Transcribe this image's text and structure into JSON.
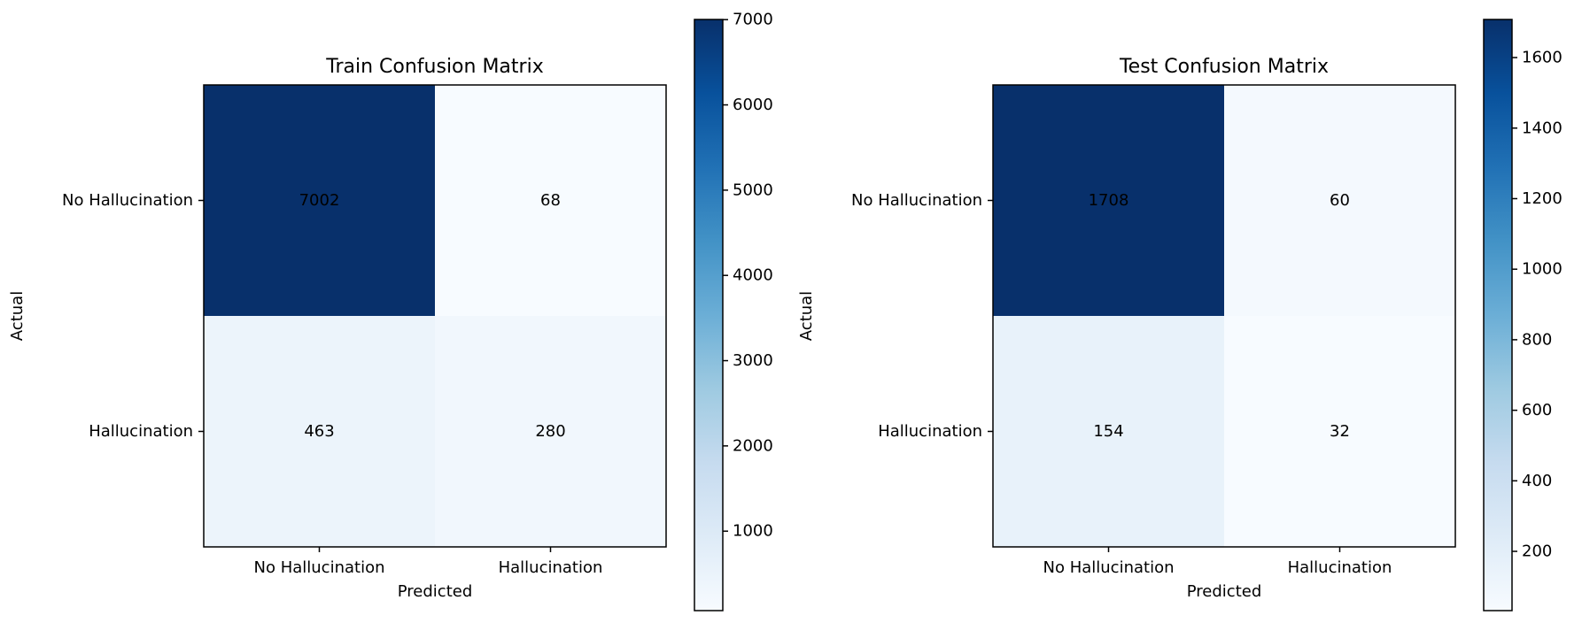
{
  "chart_data": [
    {
      "type": "heatmap",
      "title": "Train Confusion Matrix",
      "xlabel": "Predicted",
      "ylabel": "Actual",
      "x_categories": [
        "No Hallucination",
        "Hallucination"
      ],
      "y_categories": [
        "No Hallucination",
        "Hallucination"
      ],
      "matrix": [
        [
          7002,
          68
        ],
        [
          463,
          280
        ]
      ],
      "colormap": "Blues",
      "colorbar": {
        "min": 68,
        "max": 7002,
        "ticks": [
          1000,
          2000,
          3000,
          4000,
          5000,
          6000,
          7000
        ]
      }
    },
    {
      "type": "heatmap",
      "title": "Test Confusion Matrix",
      "xlabel": "Predicted",
      "ylabel": "Actual",
      "x_categories": [
        "No Hallucination",
        "Hallucination"
      ],
      "y_categories": [
        "No Hallucination",
        "Hallucination"
      ],
      "matrix": [
        [
          1708,
          60
        ],
        [
          154,
          32
        ]
      ],
      "colormap": "Blues",
      "colorbar": {
        "min": 32,
        "max": 1708,
        "ticks": [
          200,
          400,
          600,
          800,
          1000,
          1200,
          1400,
          1600
        ]
      }
    }
  ]
}
